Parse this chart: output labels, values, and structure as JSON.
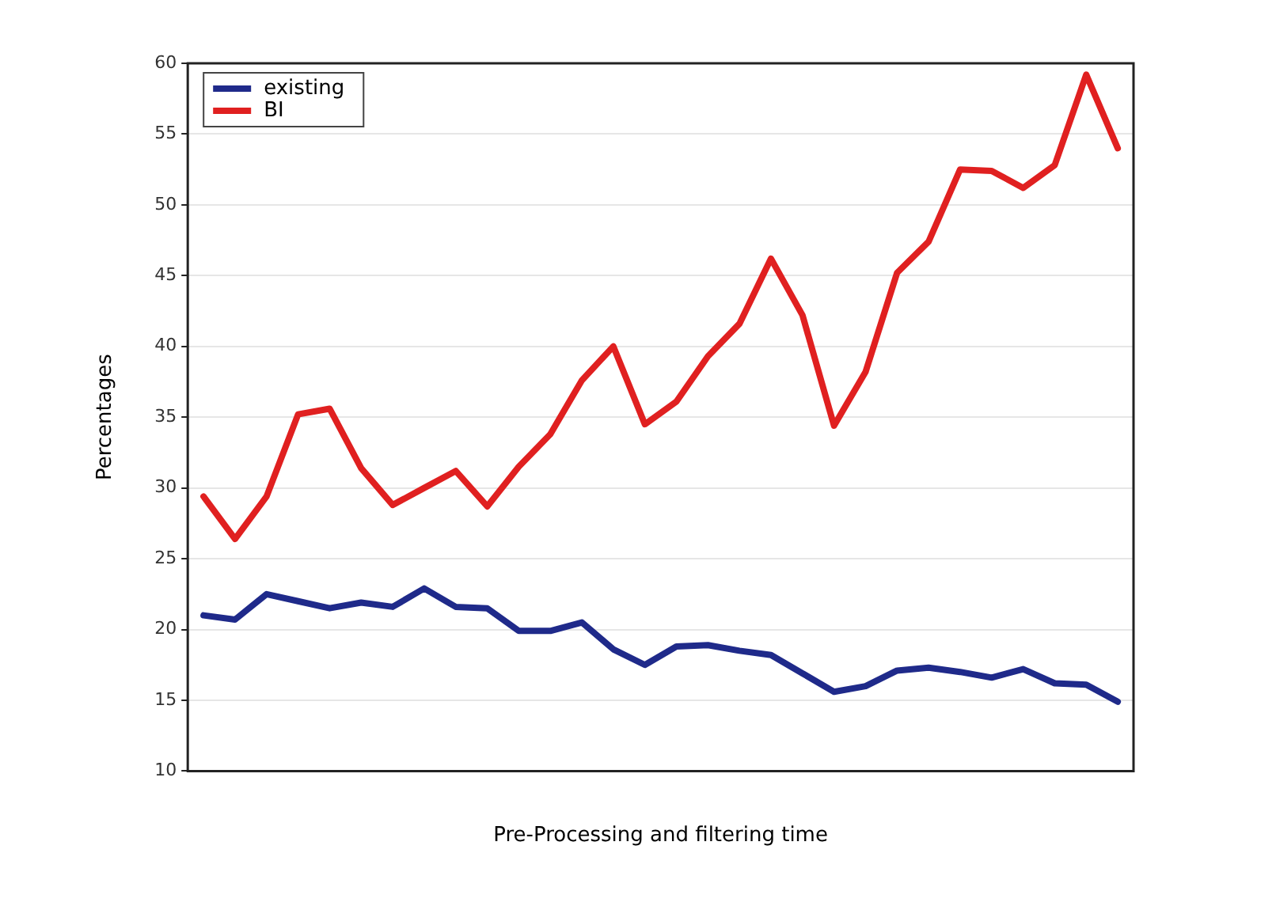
{
  "chart_data": {
    "type": "line",
    "xlabel": "Pre-Processing and filtering time",
    "ylabel": "Percentages",
    "categories": [
      null,
      null,
      null,
      null,
      null,
      null,
      null,
      null,
      null,
      null,
      null,
      null,
      null,
      null,
      null,
      null,
      null,
      null,
      null,
      null,
      null,
      null,
      null,
      null,
      null,
      null,
      null,
      null,
      null,
      null
    ],
    "ylim": [
      10,
      60
    ],
    "yticks": [
      10,
      15,
      20,
      25,
      30,
      35,
      40,
      45,
      50,
      55,
      60
    ],
    "grid": "y",
    "legend": "top left",
    "line_style": "solid",
    "series": [
      {
        "name": "existing",
        "color": "#1f2a8a",
        "values": [
          21.0,
          20.7,
          22.5,
          22.0,
          21.5,
          21.9,
          21.6,
          22.9,
          21.6,
          21.5,
          19.9,
          19.9,
          20.5,
          18.6,
          17.5,
          18.8,
          18.9,
          18.5,
          18.2,
          16.9,
          15.6,
          16.0,
          17.1,
          17.3,
          17.0,
          16.6,
          17.2,
          16.2,
          16.1,
          14.9
        ]
      },
      {
        "name": "BI",
        "color": "#e02020",
        "values": [
          29.4,
          26.4,
          29.4,
          35.2,
          35.6,
          31.4,
          28.8,
          30.0,
          31.2,
          28.7,
          31.5,
          33.8,
          37.6,
          40.0,
          34.5,
          36.1,
          39.3,
          41.6,
          46.2,
          42.2,
          34.4,
          38.2,
          45.2,
          47.4,
          52.5,
          52.4,
          51.2,
          52.8,
          59.2,
          54.0
        ]
      }
    ]
  }
}
